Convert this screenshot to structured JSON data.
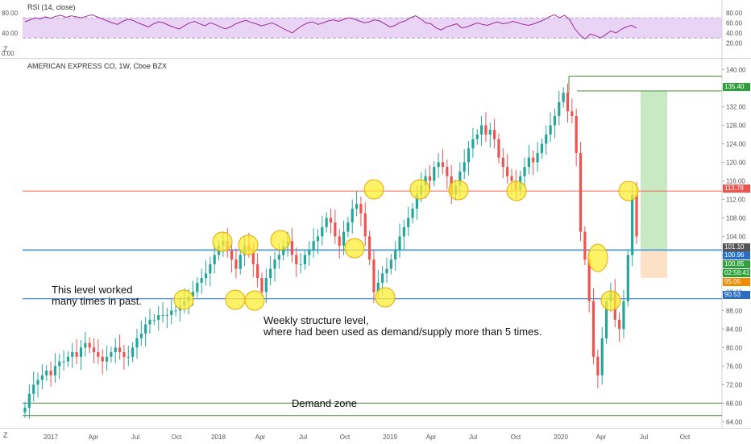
{
  "colors": {
    "up": "#26a69a",
    "down": "#ef5350",
    "rsi_line": "#9b2c9b",
    "rsi_band": "#e9d4f5",
    "resistance": "#f06a5a",
    "structure": "#3b8ed8",
    "structure2": "#2a6fc4",
    "demand": "#4b8a3e",
    "marker_fill": "#ffee33",
    "marker_stroke": "#e6a800",
    "target_zone": "#c8e9c4",
    "stop_zone": "#fde1c7"
  },
  "rsi": {
    "title": "RSI (14, close)",
    "left_ticks": [
      "80.00",
      "40.00",
      "0.00"
    ],
    "right_ticks": [
      "80.00",
      "60.00",
      "40.00",
      "20.00"
    ],
    "values": [
      62,
      66,
      70,
      68,
      72,
      69,
      73,
      75,
      71,
      74,
      72,
      70,
      73,
      76,
      72,
      68,
      64,
      60,
      57,
      63,
      67,
      65,
      60,
      56,
      52,
      58,
      62,
      60,
      55,
      51,
      48,
      54,
      60,
      63,
      58,
      54,
      60,
      57,
      52,
      48,
      52,
      58,
      62,
      65,
      61,
      58,
      54,
      57,
      60,
      56,
      50,
      45,
      40,
      48,
      55,
      60,
      62,
      57,
      60,
      64,
      66,
      63,
      67,
      70,
      68,
      64,
      60,
      62,
      66,
      64,
      58,
      52,
      55,
      61,
      64,
      70,
      74,
      68,
      60,
      58,
      50,
      46,
      52,
      55,
      58,
      50,
      52,
      56,
      60,
      57,
      55,
      59,
      62,
      58,
      60,
      63,
      60,
      57,
      55,
      58,
      62,
      66,
      72,
      76,
      70,
      75,
      66,
      48,
      36,
      28,
      38,
      35,
      30,
      37,
      44,
      40,
      47,
      52,
      55,
      50
    ]
  },
  "main": {
    "title": "AMERICAN EXPRESS CO, 1W, Cboe BZX",
    "price_ticks": [
      "140.00",
      "136.00",
      "132.00",
      "128.00",
      "124.00",
      "120.00",
      "116.00",
      "112.00",
      "108.00",
      "104.00",
      "100.00",
      "96.00",
      "92.00",
      "88.00",
      "84.00",
      "80.00",
      "76.00",
      "72.00",
      "68.00",
      "64.00"
    ],
    "price_tags": [
      {
        "label": "135.40",
        "color": "#2e9f3a"
      },
      {
        "label": "113.78",
        "color": "#ef5350"
      },
      {
        "label": "101.10",
        "color": "#555555"
      },
      {
        "label": "100.96",
        "color": "#2a6fc4"
      },
      {
        "label": "100.85",
        "color": "#2e9f3a"
      },
      {
        "label": "02:58:41",
        "color": "#2e9f3a"
      },
      {
        "label": "95.05",
        "color": "#ef8c00"
      },
      {
        "label": "90.53",
        "color": "#2a6fc4"
      }
    ],
    "annotations": {
      "level_note_line1": "This level worked",
      "level_note_line2": "many times in past.",
      "structure_note_line1": "Weekly structure level,",
      "structure_note_line2": "where had been used as demand/supply more than 5 times.",
      "demand_zone": "Demand zone"
    }
  },
  "time_axis": [
    "2017",
    "Apr",
    "Jul",
    "Oct",
    "2018",
    "Apr",
    "Jul",
    "Oct",
    "2019",
    "Apr",
    "Jul",
    "Oct",
    "2020",
    "Apr",
    "Jul",
    "Oct"
  ],
  "corner_labels": {
    "bottom_left": "Z",
    "top_left": "Z"
  },
  "chart_data": {
    "type": "candlestick",
    "title": "AMERICAN EXPRESS CO, 1W, Cboe BZX",
    "ylim": [
      63,
      142
    ],
    "levels": [
      {
        "name": "resistance",
        "value": 113.78
      },
      {
        "name": "structure_upper",
        "value": 101.1
      },
      {
        "name": "structure_upper2",
        "value": 100.96
      },
      {
        "name": "structure_lower",
        "value": 90.53
      },
      {
        "name": "demand_top",
        "value": 68.0
      },
      {
        "name": "demand_bottom",
        "value": 65.3
      },
      {
        "name": "top_high",
        "value": 138.6
      },
      {
        "name": "top_entry",
        "value": 135.4
      }
    ],
    "position": {
      "start_label": "Jul",
      "entry": 101.1,
      "target": 135.4,
      "stop": 95.05
    },
    "closes": [
      67,
      70,
      72,
      73,
      74,
      75,
      74,
      76,
      77,
      77,
      78,
      79,
      78,
      80,
      81,
      80,
      79,
      78,
      77,
      78,
      79,
      80,
      79,
      78,
      78,
      80,
      82,
      83,
      85,
      86,
      86,
      87,
      87,
      87,
      88,
      88,
      89,
      90,
      91,
      92,
      94,
      95,
      96,
      98,
      100,
      102,
      103,
      101,
      99,
      97,
      100,
      102,
      101,
      98,
      95,
      92,
      95,
      97,
      99,
      100,
      102,
      103,
      100,
      98,
      98,
      100,
      101,
      103,
      104,
      106,
      108,
      107,
      104,
      102,
      105,
      107,
      110,
      111,
      109,
      104,
      99,
      92,
      94,
      96,
      97,
      99,
      101,
      104,
      106,
      108,
      110,
      113,
      115,
      117,
      116,
      119,
      120,
      119,
      117,
      113,
      115,
      118,
      120,
      123,
      125,
      126,
      128,
      126,
      127,
      125,
      121,
      119,
      117,
      116,
      114,
      117,
      119,
      121,
      120,
      122,
      124,
      126,
      128,
      130,
      133,
      135,
      131,
      130,
      122,
      105,
      99,
      90,
      78,
      74,
      82,
      90,
      92,
      86,
      84,
      90,
      100,
      113,
      104
    ]
  }
}
